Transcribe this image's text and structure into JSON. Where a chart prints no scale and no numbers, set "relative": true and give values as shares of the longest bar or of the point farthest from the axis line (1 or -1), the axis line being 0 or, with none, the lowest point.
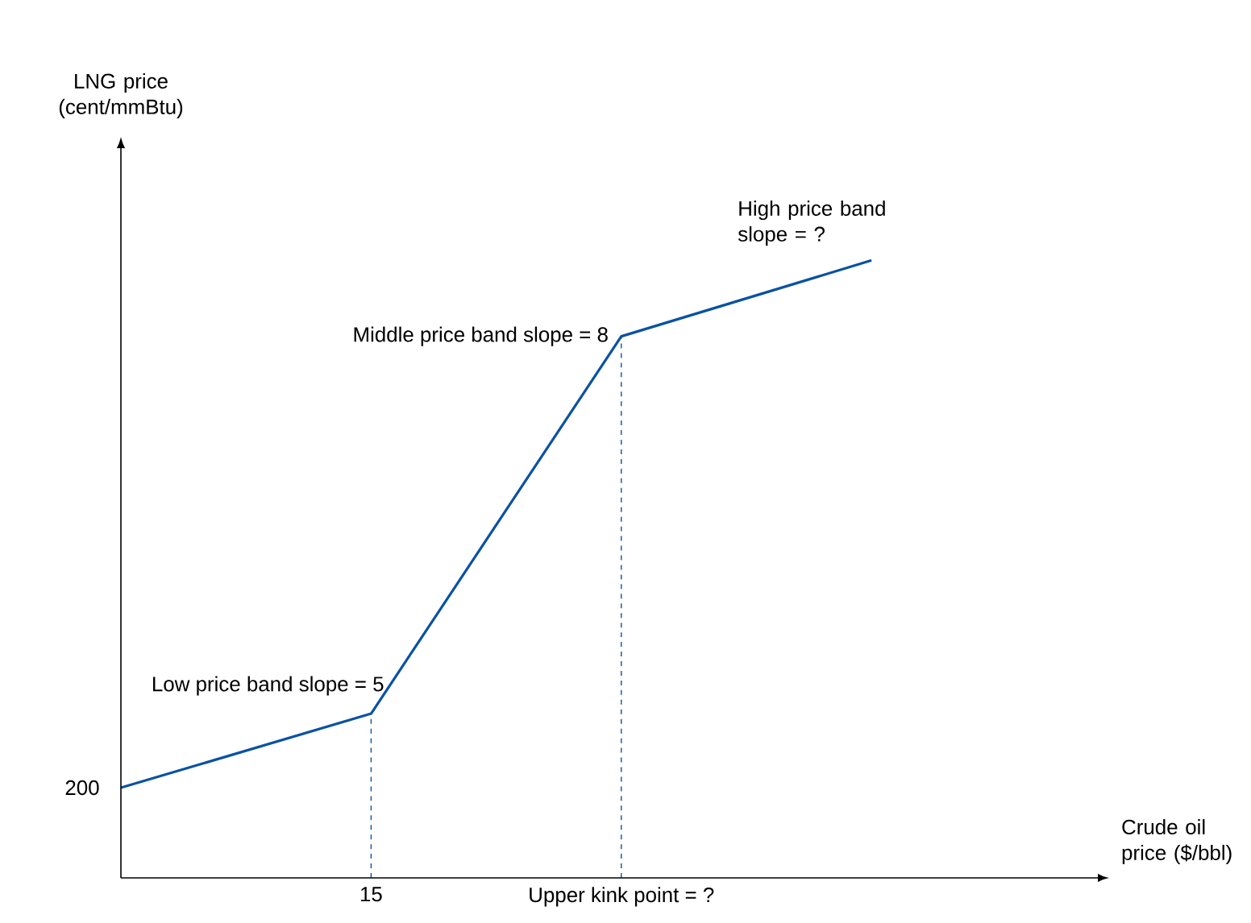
{
  "chart_data": {
    "type": "line",
    "relative": true,
    "xlabel": "Crude oil price ($/bbl)",
    "categories": [
      null,
      "15",
      "Upper kink point = ?",
      null
    ],
    "series": [
      {
        "color": "#0a52a1",
        "values": [
          0.146,
          0.266,
          0.877,
          1
        ]
      }
    ],
    "ref_lines": [
      {
        "axis": "x",
        "value": "15",
        "color": "#0a52a1",
        "line_style": "dashed"
      },
      {
        "axis": "x",
        "value": "Upper kink point = ?",
        "color": "#0a52a1",
        "line_style": "dashed"
      }
    ],
    "annotations": [
      "200",
      "Low price band slope = 5",
      "Middle price band slope = 8",
      "High price band slope = ?",
      "LNG price (cent/mmBtu)"
    ],
    "marker": "none",
    "grid": false
  }
}
